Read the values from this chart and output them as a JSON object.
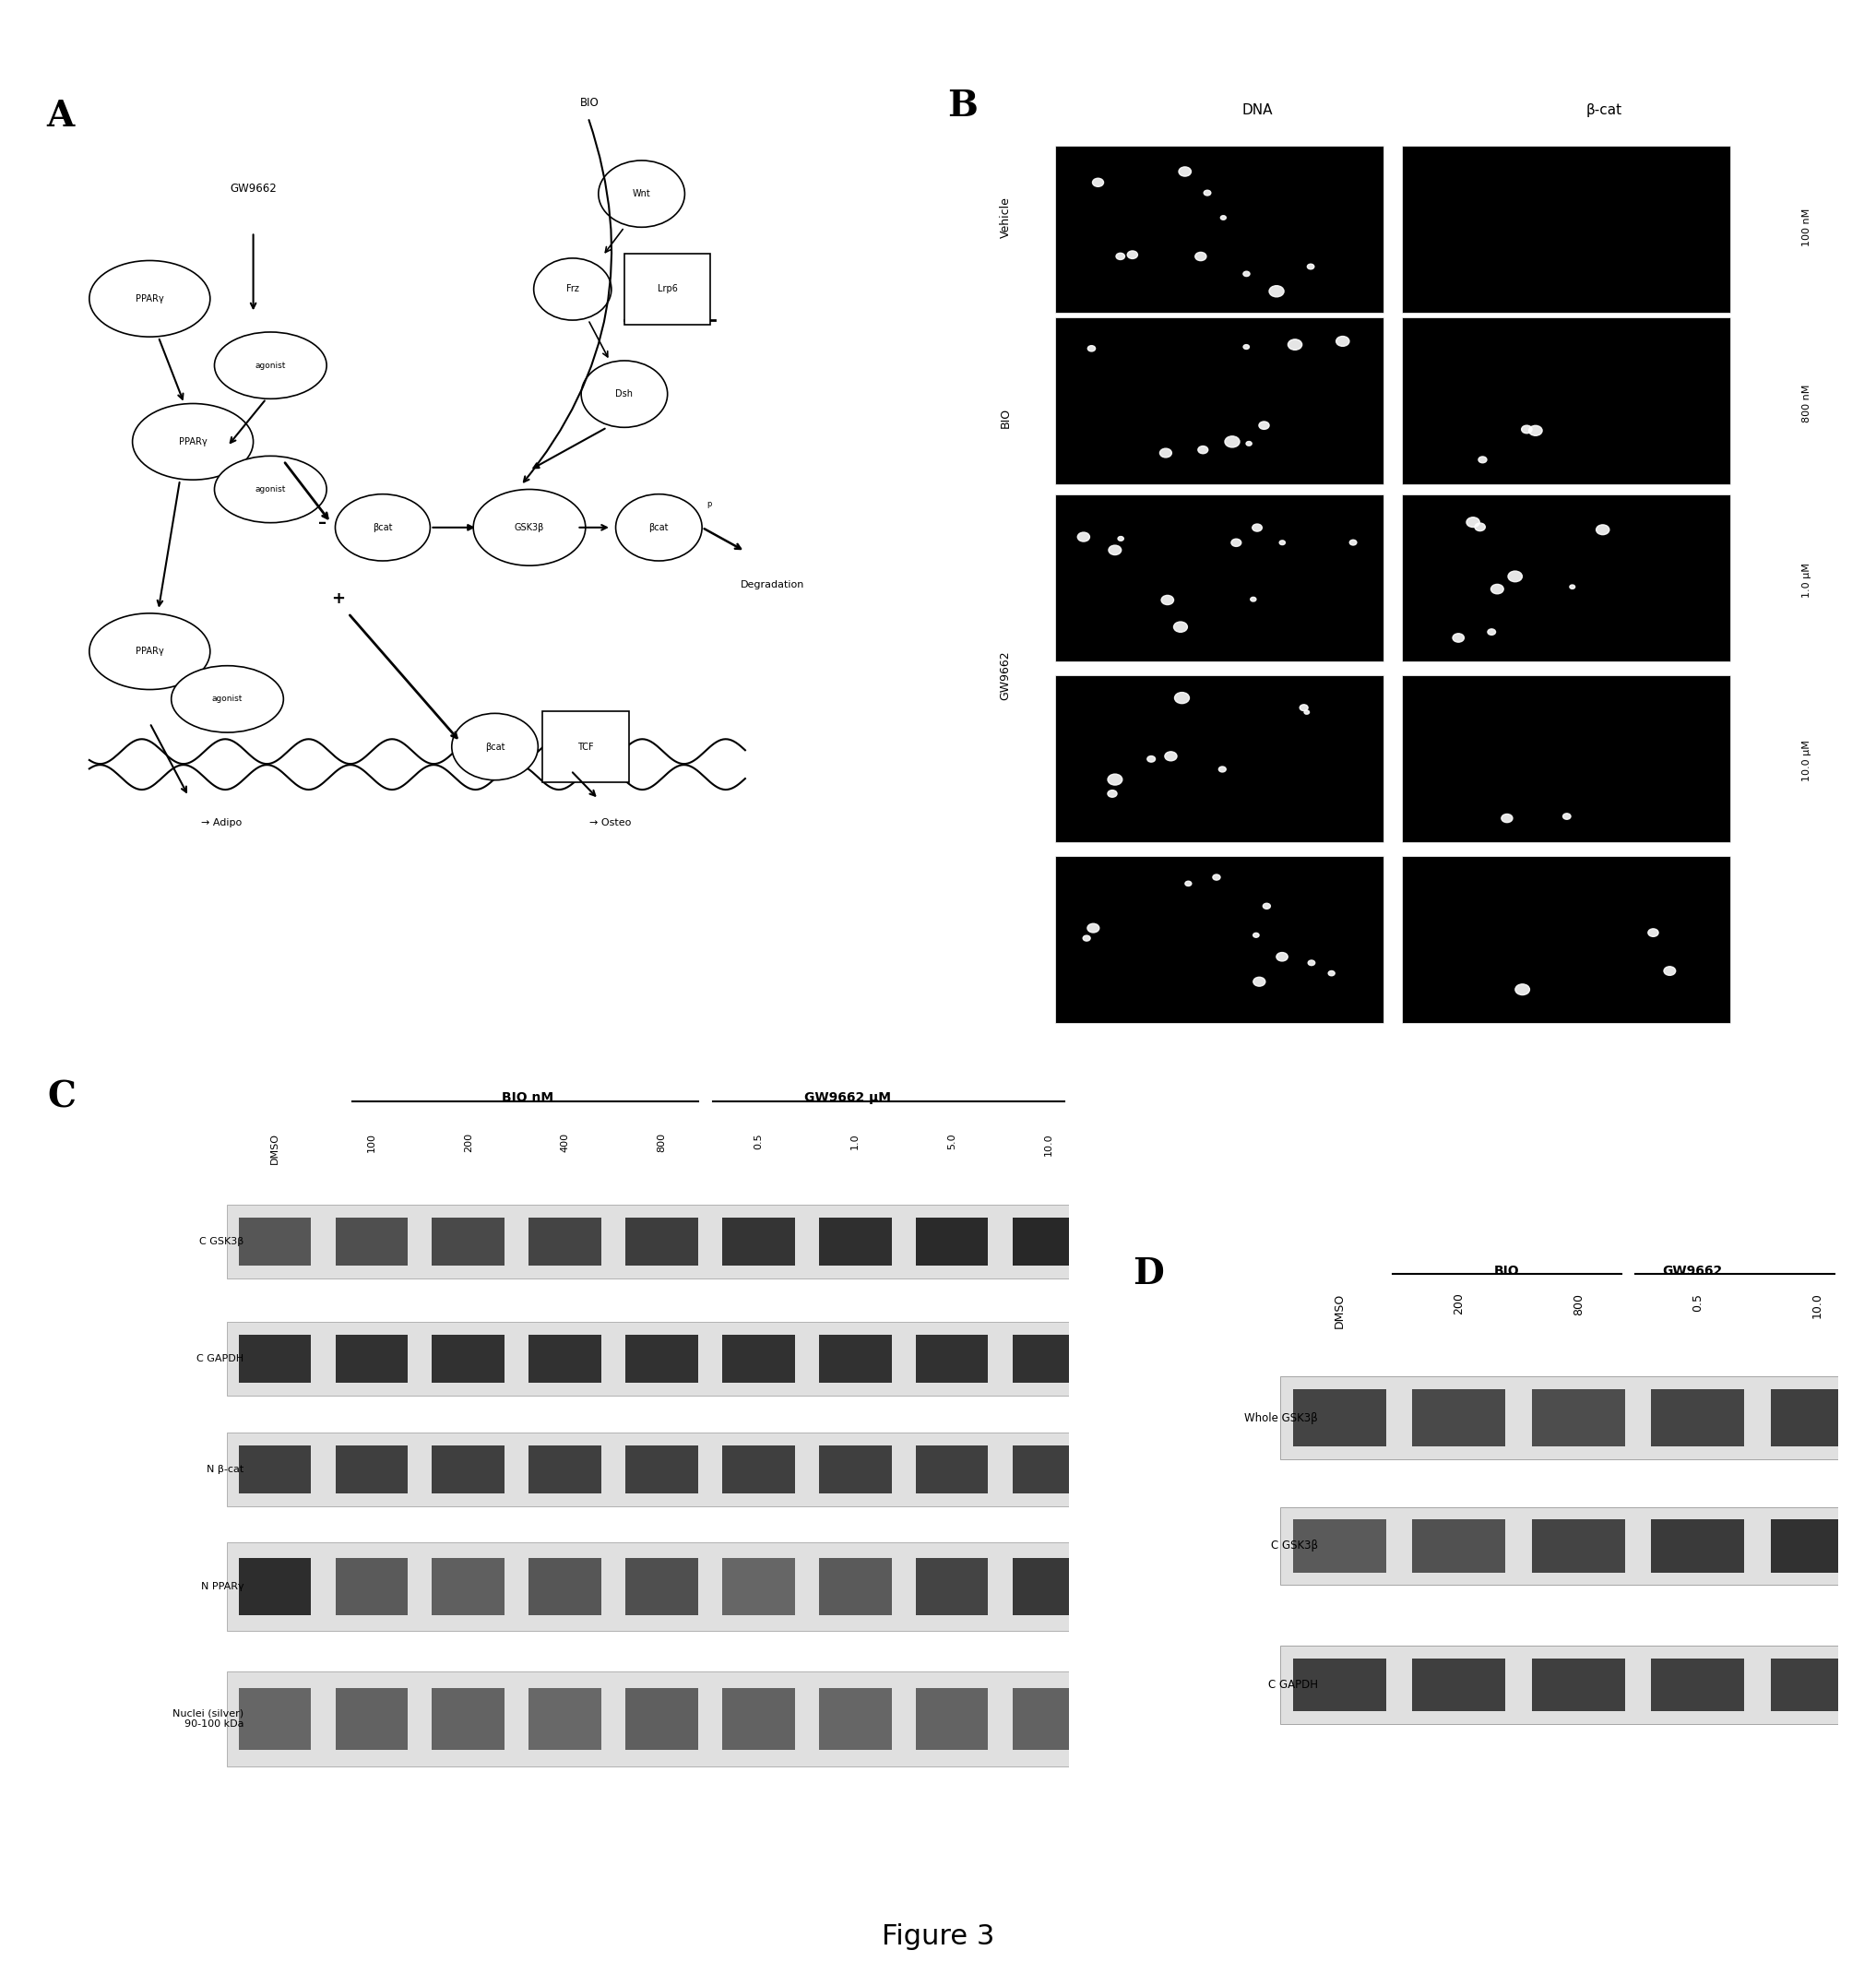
{
  "figure_title": "Figure 3",
  "panel_labels": [
    "A",
    "B",
    "C",
    "D"
  ],
  "panel_A": {
    "GW9662_label": "GW9662",
    "BIO_label": "BIO",
    "Degradation_label": "Degradation",
    "Adipo_label": "→ Adipo",
    "Osteo_label": "→ Osteo"
  },
  "panel_B": {
    "col_headers": [
      "DNA",
      "β-cat"
    ],
    "row_labels": [
      "Vehicle",
      "BIO",
      "GW9662"
    ],
    "conc_labels": [
      "100 nM",
      "800 nM",
      "1.0 μM",
      "10.0 μM"
    ]
  },
  "panel_C": {
    "lane_labels": [
      "DMSO",
      "100",
      "200",
      "400",
      "800",
      "0.5",
      "1.0",
      "5.0",
      "10.0"
    ],
    "bio_header": "BIO nM",
    "gw_header": "GW9662 μM",
    "row_labels": [
      "C GSK3β",
      "C GAPDH",
      "N β-cat",
      "N PPARγ",
      "Nuclei (silver)\n90-100 kDa"
    ]
  },
  "panel_D": {
    "lane_labels": [
      "DMSO",
      "200",
      "800",
      "0.5",
      "10.0"
    ],
    "bio_header": "BIO",
    "gw_header": "GW9662",
    "row_labels": [
      "Whole GSK3β",
      "C GSK3β",
      "C GAPDH"
    ]
  },
  "background_color": "#ffffff"
}
